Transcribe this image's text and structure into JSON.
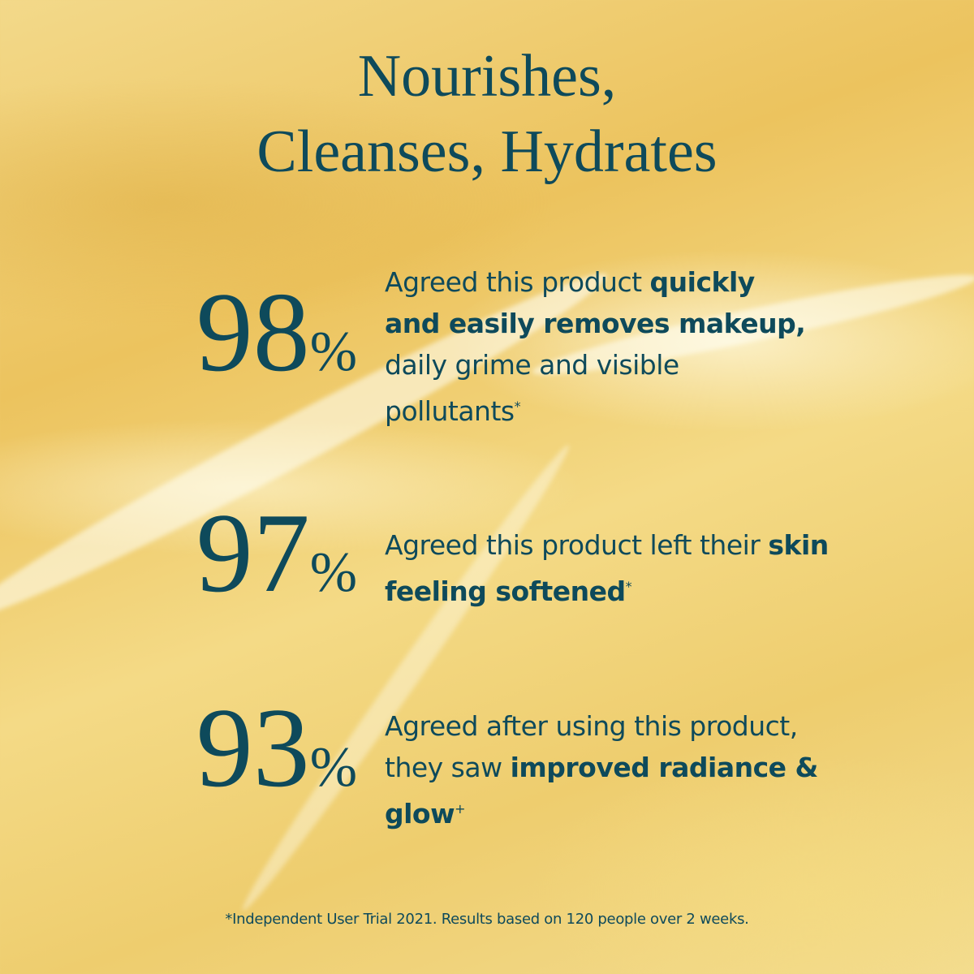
{
  "colors": {
    "text": "#0e4a5b",
    "background": "#efcf72"
  },
  "title": {
    "line1": "Nourishes,",
    "line2": "Cleanses, Hydrates"
  },
  "stats": [
    {
      "number": "98",
      "percent": "%",
      "segments": [
        {
          "text": "Agreed this product ",
          "bold": false
        },
        {
          "text": "quickly and easily removes makeup,",
          "bold": true
        },
        {
          "text": " daily grime and visible pollutants",
          "bold": false
        },
        {
          "text": "*",
          "sup": true
        }
      ]
    },
    {
      "number": "97",
      "percent": "%",
      "segments": [
        {
          "text": "Agreed this product left their ",
          "bold": false
        },
        {
          "text": "skin feeling softened",
          "bold": true
        },
        {
          "text": "*",
          "sup": true
        }
      ]
    },
    {
      "number": "93",
      "percent": "%",
      "segments": [
        {
          "text": " Agreed after using this product, they saw ",
          "bold": false
        },
        {
          "text": "improved radiance & glow",
          "bold": true
        },
        {
          "text": "+",
          "sup": true
        }
      ]
    }
  ],
  "footer": "*Independent User Trial 2021. Results based on 120 people over 2 weeks."
}
